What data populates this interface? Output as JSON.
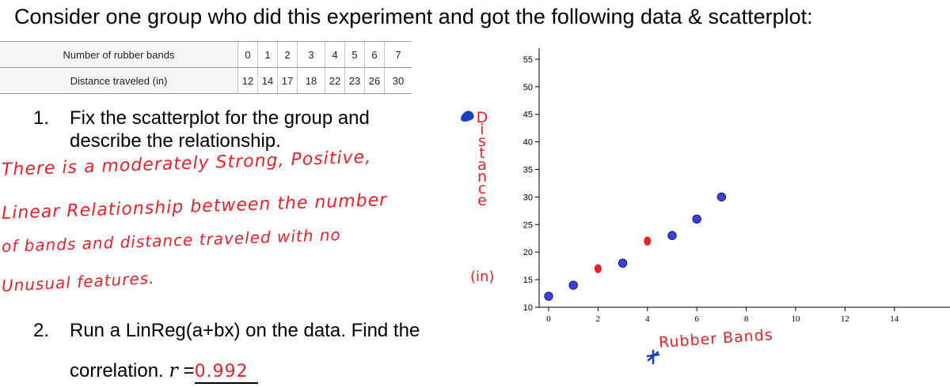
{
  "heading": "Consider one group who did this experiment and got the following data & scatterplot:",
  "table": {
    "rows": [
      {
        "label": "Number of rubber bands",
        "values": [
          "0",
          "1",
          "2",
          "3",
          "4",
          "5",
          "6",
          "7"
        ]
      },
      {
        "label": "Distance traveled (in)",
        "values": [
          "12",
          "14",
          "17",
          "18",
          "22",
          "23",
          "26",
          "30"
        ]
      }
    ]
  },
  "question1": {
    "number": "1.",
    "line1": "Fix the scatterplot for the group and",
    "line2": "describe the relationship."
  },
  "answer1": [
    "There is a moderately Strong, Positive,",
    "Linear Relationship between the number",
    "of bands and distance traveled with no",
    "Unusual features."
  ],
  "question2": {
    "number": "2.",
    "text": "Run a LinReg(a+bx) on the data. Find the",
    "correlation_prefix": "correlation.",
    "r_symbol": "r",
    "equals": "=",
    "r_value": "0.992"
  },
  "annotations": {
    "y_axis_handwritten": [
      "D",
      "i",
      "s",
      "t",
      "a",
      "n",
      "c",
      "e"
    ],
    "y_unit_handwritten": "(in)",
    "x_axis_handwritten": "Rubber Bands"
  },
  "colors": {
    "handwriting_red": "#e8212b",
    "point_blue": "#3b3fe0",
    "corrected_red_point": "#e8212b",
    "pen_blue": "#1a3fbf"
  },
  "chart_data": {
    "type": "scatter",
    "title": "",
    "xlabel": "Rubber Bands",
    "ylabel": "Distance (in)",
    "xlim": [
      0,
      15
    ],
    "ylim": [
      10,
      57
    ],
    "xticks": [
      0,
      2,
      4,
      6,
      8,
      10,
      12,
      14
    ],
    "yticks": [
      10,
      15,
      20,
      25,
      30,
      35,
      40,
      45,
      50,
      55
    ],
    "grid": false,
    "series": [
      {
        "points": [
          [
            0,
            12
          ],
          [
            1,
            14
          ],
          [
            3,
            18
          ],
          [
            5,
            23
          ],
          [
            6,
            26
          ],
          [
            7,
            30
          ]
        ],
        "color": "#3b3fe0"
      },
      {
        "points": [
          [
            2,
            17
          ],
          [
            4,
            22
          ]
        ],
        "color": "#e8212b"
      }
    ]
  }
}
